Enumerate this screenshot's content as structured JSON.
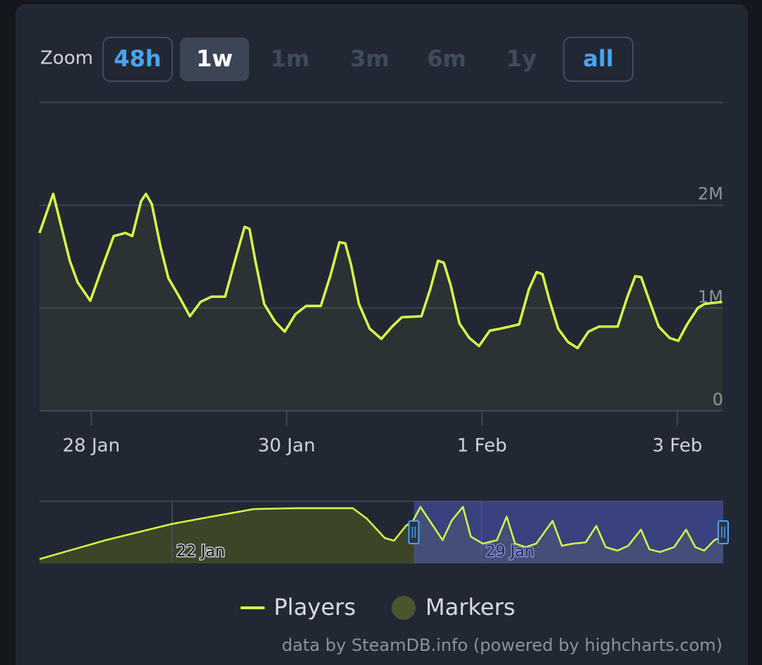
{
  "zoom": {
    "label": "Zoom",
    "buttons": [
      {
        "label": "48h",
        "state": "enabled"
      },
      {
        "label": "1w",
        "state": "selected"
      },
      {
        "label": "1m",
        "state": "disabled"
      },
      {
        "label": "3m",
        "state": "disabled"
      },
      {
        "label": "6m",
        "state": "disabled"
      },
      {
        "label": "1y",
        "state": "disabled"
      },
      {
        "label": "all",
        "state": "enabled"
      }
    ]
  },
  "chart_data": [
    {
      "type": "line",
      "grid": true,
      "x": [
        27.47,
        27.61,
        27.78,
        27.86,
        27.99,
        28.11,
        28.23,
        28.35,
        28.42,
        28.51,
        28.56,
        28.62,
        28.71,
        28.79,
        28.9,
        29.01,
        29.12,
        29.23,
        29.37,
        29.48,
        29.57,
        29.62,
        29.68,
        29.77,
        29.88,
        29.98,
        30.09,
        30.2,
        30.35,
        30.45,
        30.54,
        30.6,
        30.66,
        30.74,
        30.85,
        30.97,
        31.08,
        31.18,
        31.38,
        31.47,
        31.55,
        31.61,
        31.68,
        31.77,
        31.87,
        31.97,
        32.08,
        32.19,
        32.38,
        32.48,
        32.56,
        32.62,
        32.69,
        32.78,
        32.88,
        32.98,
        33.09,
        33.2,
        33.39,
        33.49,
        33.57,
        33.63,
        33.7,
        33.81,
        33.92,
        34.01,
        34.1,
        34.21,
        34.28,
        34.46
      ],
      "series": [
        {
          "name": "Players",
          "color": "#d6fc46",
          "values": [
            1730000,
            2110000,
            1460000,
            1250000,
            1070000,
            1390000,
            1700000,
            1730000,
            1700000,
            2040000,
            2110000,
            2010000,
            1590000,
            1290000,
            1110000,
            920000,
            1060000,
            1110000,
            1110000,
            1490000,
            1790000,
            1770000,
            1460000,
            1040000,
            870000,
            770000,
            940000,
            1020000,
            1020000,
            1320000,
            1640000,
            1630000,
            1420000,
            1040000,
            800000,
            700000,
            820000,
            910000,
            920000,
            1180000,
            1460000,
            1440000,
            1220000,
            850000,
            710000,
            630000,
            780000,
            800000,
            840000,
            1180000,
            1350000,
            1330000,
            1080000,
            800000,
            670000,
            610000,
            770000,
            820000,
            820000,
            1110000,
            1310000,
            1300000,
            1110000,
            820000,
            710000,
            680000,
            840000,
            1000000,
            1040000,
            1060000
          ]
        }
      ],
      "xlim": [
        27.47,
        34.47
      ],
      "xticks": [
        {
          "value": 28,
          "label": "28 Jan"
        },
        {
          "value": 30,
          "label": "30 Jan"
        },
        {
          "value": 32,
          "label": "1 Feb"
        },
        {
          "value": 34,
          "label": "3 Feb"
        }
      ],
      "ylim": [
        0,
        3000000
      ],
      "yticks": [
        0,
        {
          "value": 1000000,
          "label": "1M"
        },
        {
          "value": 2000000,
          "label": "2M"
        }
      ]
    },
    {
      "type": "navigator",
      "x": [
        19.0,
        20.5,
        22.0,
        22.89,
        23.85,
        24.81,
        26.09,
        26.41,
        26.81,
        27.02,
        27.29,
        27.45,
        27.62,
        28.12,
        28.33,
        28.58,
        28.76,
        29.03,
        29.35,
        29.57,
        29.76,
        30.0,
        30.24,
        30.61,
        30.82,
        31.07,
        31.36,
        31.6,
        31.81,
        32.08,
        32.32,
        32.61,
        32.8,
        33.04,
        33.36,
        33.63,
        33.84,
        34.04,
        34.27,
        34.47
      ],
      "series": [
        {
          "name": "Players",
          "color": "#d6fc46",
          "values": [
            160000,
            860000,
            1460000,
            1730000,
            2010000,
            2040000,
            2040000,
            1650000,
            940000,
            840000,
            1390000,
            1570000,
            2090000,
            860000,
            1590000,
            2090000,
            990000,
            730000,
            860000,
            1730000,
            730000,
            600000,
            730000,
            1570000,
            650000,
            730000,
            780000,
            1390000,
            600000,
            470000,
            650000,
            1250000,
            520000,
            420000,
            600000,
            1250000,
            600000,
            470000,
            860000,
            990000
          ]
        }
      ],
      "xlim": [
        19.0,
        34.47
      ],
      "xticks": [
        {
          "value": 22,
          "label": "22 Jan"
        },
        {
          "value": 29,
          "label": "29 Jan"
        }
      ],
      "ylim": [
        0,
        2300000
      ]
    }
  ],
  "markers": {
    "name": "Markers",
    "color": "#4a5530"
  },
  "credits": "data by SteamDB.info (powered by highcharts.com)"
}
